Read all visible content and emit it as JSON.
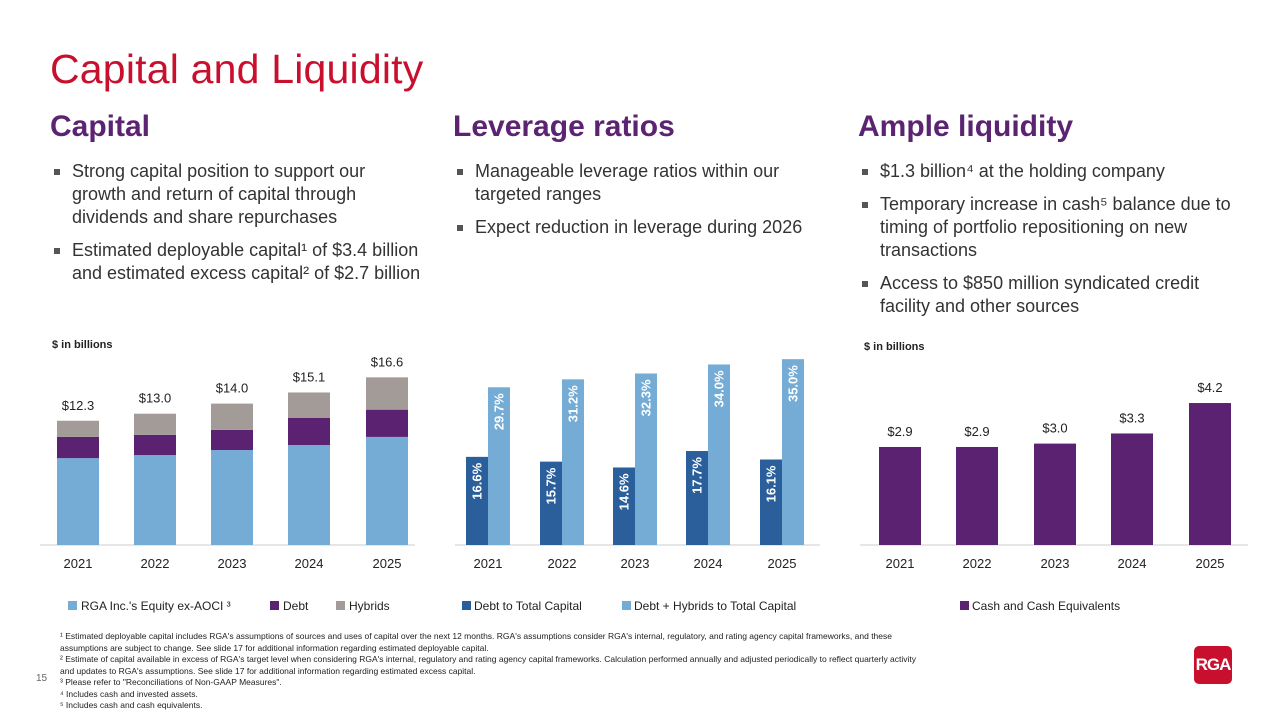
{
  "title": "Capital and Liquidity",
  "sections": [
    {
      "heading": "Capital",
      "bullets": [
        {
          "text": "Strong capital position to support our growth and return of capital through dividends and share repurchases"
        },
        {
          "text": "Estimated deployable capital¹ of $3.4 billion and estimated excess capital² of $2.7 billion"
        }
      ]
    },
    {
      "heading": "Leverage ratios",
      "bullets": [
        {
          "text": "Manageable leverage ratios within our targeted ranges"
        },
        {
          "text": "Expect reduction in leverage during 2026"
        }
      ]
    },
    {
      "heading": "Ample liquidity",
      "bullets": [
        {
          "text": "$1.3 billion⁴ at the holding company"
        },
        {
          "text": "Temporary increase in cash⁵ balance due to timing of portfolio repositioning on new transactions"
        },
        {
          "text": "Access to $850 million syndicated credit facility and other sources"
        }
      ]
    }
  ],
  "chart_data": [
    {
      "type": "bar",
      "stacked": true,
      "unit_label": "$ in billions",
      "categories": [
        "2021",
        "2022",
        "2023",
        "2024",
        "2025"
      ],
      "series": [
        {
          "name": "RGA Inc.'s Equity ex-AOCI ³",
          "color": "#74acd5",
          "values": [
            8.6,
            8.9,
            9.4,
            9.9,
            10.7
          ]
        },
        {
          "name": "Debt",
          "color": "#5a2270",
          "values": [
            2.1,
            2.0,
            2.0,
            2.7,
            2.7
          ]
        },
        {
          "name": "Hybrids",
          "color": "#a39b98",
          "values": [
            1.6,
            2.1,
            2.6,
            2.5,
            3.2
          ]
        }
      ],
      "totals": [
        "$12.3",
        "$13.0",
        "$14.0",
        "$15.1",
        "$16.6"
      ],
      "legend": "bottom"
    },
    {
      "type": "bar",
      "stacked": false,
      "categories": [
        "2021",
        "2022",
        "2023",
        "2024",
        "2025"
      ],
      "series": [
        {
          "name": "Debt to Total Capital",
          "color": "#2b5f9c",
          "values": [
            16.6,
            15.7,
            14.6,
            17.7,
            16.1
          ],
          "labels": [
            "16.6%",
            "15.7%",
            "14.6%",
            "17.7%",
            "16.1%"
          ]
        },
        {
          "name": "Debt + Hybrids to Total Capital",
          "color": "#74acd5",
          "values": [
            29.7,
            31.2,
            32.3,
            34.0,
            35.0
          ],
          "labels": [
            "29.7%",
            "31.2%",
            "32.3%",
            "34.0%",
            "35.0%"
          ]
        }
      ],
      "legend": "bottom"
    },
    {
      "type": "bar",
      "unit_label": "$ in billions",
      "categories": [
        "2021",
        "2022",
        "2023",
        "2024",
        "2025"
      ],
      "series": [
        {
          "name": "Cash and Cash Equivalents",
          "color": "#5a2270",
          "values": [
            2.9,
            2.9,
            3.0,
            3.3,
            4.2
          ],
          "labels": [
            "$2.9",
            "$2.9",
            "$3.0",
            "$3.3",
            "$4.2"
          ]
        }
      ],
      "legend": "bottom"
    }
  ],
  "footnotes": [
    "¹ Estimated deployable capital includes RGA's assumptions of sources and uses of capital over the next 12 months. RGA's assumptions consider RGA's internal, regulatory, and rating agency capital frameworks, and these",
    "assumptions are subject to change. See slide 17 for additional information regarding estimated deployable capital.",
    "² Estimate of capital available in excess of RGA's target level when considering RGA's internal, regulatory and rating agency capital frameworks.  Calculation performed annually and adjusted periodically to reflect quarterly activity",
    "and updates to RGA's assumptions. See slide 17 for additional information regarding estimated excess capital.",
    "³ Please refer to \"Reconciliations of Non-GAAP Measures\".",
    "⁴ Includes cash and invested assets.",
    "⁵ Includes cash and cash equivalents."
  ],
  "page_number": "15",
  "logo": "RGA"
}
